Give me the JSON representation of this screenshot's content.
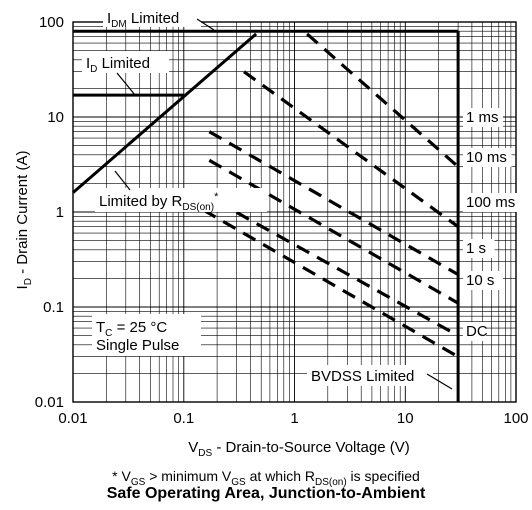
{
  "chart_data": {
    "type": "line",
    "title": "Safe Operating Area, Junction-to-Ambient",
    "footnote": "* V_GS > minimum V_GS at which R_DS(on) is specified",
    "xlabel": "V_DS - Drain-to-Source Voltage (V)",
    "ylabel": "I_D - Drain Current (A)",
    "x_scale": "log",
    "y_scale": "log",
    "xlim": [
      0.01,
      100
    ],
    "ylim": [
      0.01,
      100
    ],
    "x_ticks": [
      "0.01",
      "0.1",
      "1",
      "10",
      "100"
    ],
    "y_ticks": [
      "0.01",
      "0.1",
      "1",
      "10",
      "100"
    ],
    "grid": true,
    "boundary_lines": [
      {
        "name": "I_DM Limited",
        "x": [
          0.01,
          30
        ],
        "y": [
          80,
          80
        ]
      },
      {
        "name": "I_D Limited",
        "x": [
          0.01,
          0.1
        ],
        "y": [
          17,
          17
        ]
      },
      {
        "name": "Limited by R_DS(on)*",
        "x": [
          0.01,
          0.45
        ],
        "y": [
          1.6,
          75
        ]
      },
      {
        "name": "BVDSS Limited",
        "x": [
          30,
          30
        ],
        "y": [
          0.01,
          80
        ]
      }
    ],
    "pulse_series": [
      {
        "name": "1 ms",
        "x": [
          1.3,
          30
        ],
        "y": [
          75,
          3
        ]
      },
      {
        "name": "10 ms",
        "x": [
          0.35,
          30
        ],
        "y": [
          30,
          0.7
        ]
      },
      {
        "name": "100 ms",
        "x": [
          0.17,
          30
        ],
        "y": [
          7,
          0.22
        ]
      },
      {
        "name": "1 s",
        "x": [
          0.17,
          30
        ],
        "y": [
          3.5,
          0.11
        ]
      },
      {
        "name": "10 s",
        "x": [
          0.13,
          30
        ],
        "y": [
          1.7,
          0.05
        ]
      },
      {
        "name": "DC",
        "x": [
          0.15,
          30
        ],
        "y": [
          1.05,
          0.03
        ]
      }
    ],
    "annotations": [
      {
        "label": "I_DM Limited"
      },
      {
        "label": "I_D Limited"
      },
      {
        "label": "Limited by R_DS(on)*"
      },
      {
        "label": "BVDSS Limited"
      },
      {
        "label": "T_C = 25 °C"
      },
      {
        "label": "Single Pulse"
      }
    ]
  },
  "text": {
    "xlabel_main": "V",
    "xlabel_sub": "DS",
    "xlabel_rest": " - Drain-to-Source Voltage (V)",
    "ylabel_main": "I",
    "ylabel_sub": "D",
    "ylabel_rest": " - Drain Current (A)",
    "idm_main": "I",
    "idm_sub": "DM",
    "idm_rest": " Limited",
    "id_main": "I",
    "id_sub": "D",
    "id_rest": " Limited",
    "rds_main": "Limited by R",
    "rds_sub": "DS(on)",
    "rds_sup": "*",
    "bvdss": "BVDSS Limited",
    "tc_main": "T",
    "tc_sub": "C",
    "tc_rest": " = 25 °C",
    "single_pulse": "Single Pulse",
    "fn_star": "* V",
    "fn_sub1": "GS",
    "fn_mid": " > minimum V",
    "fn_sub2": "GS",
    "fn_mid2": " at which R",
    "fn_sub3": "DS(on)",
    "fn_end": " is specified",
    "caption": "Safe Operating Area, Junction-to-Ambient"
  }
}
